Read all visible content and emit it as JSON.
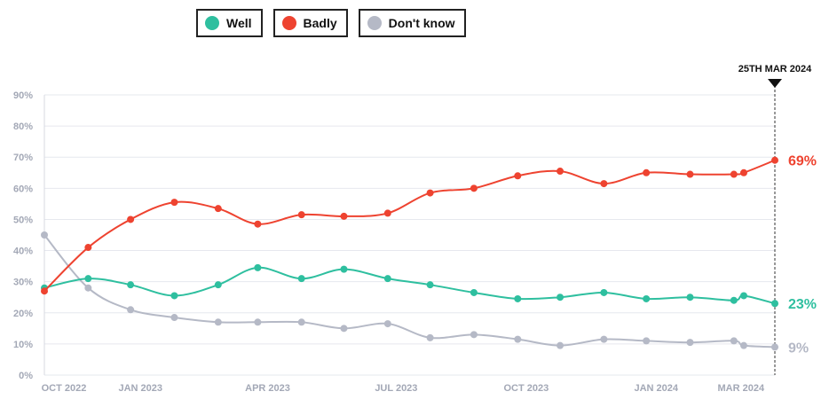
{
  "legend": [
    {
      "label": "Well",
      "color": "#2ebf9f"
    },
    {
      "label": "Badly",
      "color": "#ee4330"
    },
    {
      "label": "Don't know",
      "color": "#b5b9c6"
    }
  ],
  "chart_data": {
    "type": "line",
    "title": "",
    "xlabel": "",
    "ylabel": "",
    "ylim": [
      0,
      90
    ],
    "y_ticks": [
      "0%",
      "10%",
      "20%",
      "30%",
      "40%",
      "50%",
      "60%",
      "70%",
      "80%",
      "90%"
    ],
    "x": [
      "2022-10-25",
      "2022-11-25",
      "2022-12-25",
      "2023-01-25",
      "2023-02-25",
      "2023-03-25",
      "2023-04-25",
      "2023-05-25",
      "2023-06-25",
      "2023-07-25",
      "2023-08-25",
      "2023-09-25",
      "2023-10-25",
      "2023-11-25",
      "2023-12-25",
      "2024-01-25",
      "2024-02-25",
      "2024-03-03",
      "2024-03-25"
    ],
    "x_tick_labels": [
      "OCT 2022",
      "JAN 2023",
      "APR 2023",
      "JUL 2023",
      "OCT 2023",
      "JAN 2024",
      "MAR 2024"
    ],
    "marker": {
      "label": "25TH MAR 2024"
    },
    "grid": true,
    "series": [
      {
        "name": "Well",
        "color": "#2ebf9f",
        "end_label": "23%",
        "values": [
          28,
          31,
          29,
          25.5,
          29,
          34.5,
          31,
          34,
          31,
          29,
          26.5,
          24.5,
          25,
          26.5,
          24.5,
          25,
          24,
          25.5,
          23
        ]
      },
      {
        "name": "Badly",
        "color": "#ee4330",
        "end_label": "69%",
        "values": [
          27,
          41,
          50,
          55.5,
          53.5,
          48.5,
          51.5,
          51,
          52,
          58.5,
          60,
          64,
          65.5,
          61.5,
          65,
          64.5,
          64.5,
          65,
          69
        ]
      },
      {
        "name": "Don't know",
        "color": "#b5b9c6",
        "end_label": "9%",
        "values": [
          45,
          28,
          21,
          18.5,
          17,
          17,
          17,
          15,
          16.5,
          12,
          13,
          11.5,
          9.5,
          11.5,
          11,
          10.5,
          11,
          9.5,
          9
        ]
      }
    ]
  }
}
